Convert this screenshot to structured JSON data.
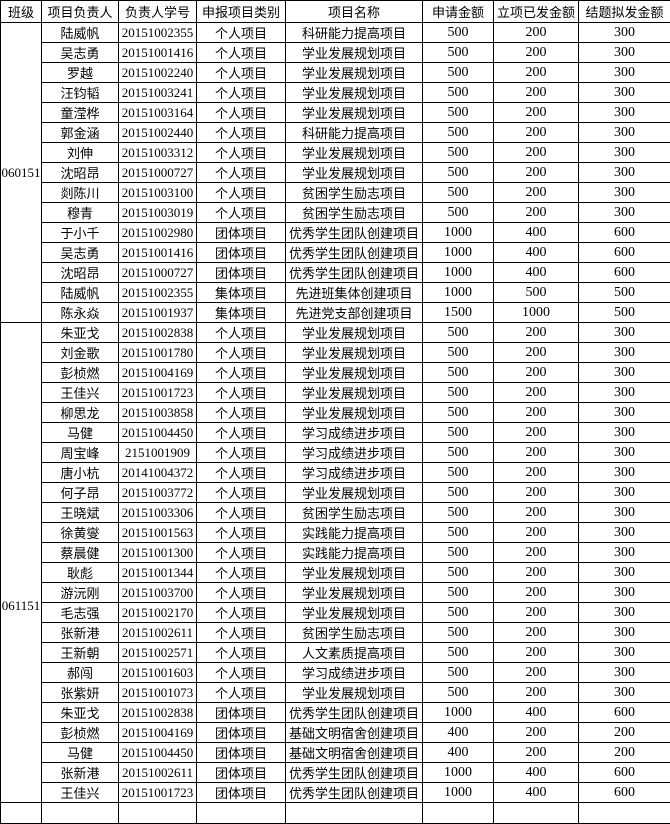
{
  "table": {
    "columns": [
      "班级",
      "项目负责人",
      "负责人学号",
      "申报项目类别",
      "项目名称",
      "申请金额",
      "立项已发金额",
      "结题拟发金额"
    ],
    "groups": [
      {
        "class_label": "060151",
        "rows": [
          [
            "陆威帆",
            "20151002355",
            "个人项目",
            "科研能力提高项目",
            "500",
            "200",
            "300"
          ],
          [
            "吴志勇",
            "20151001416",
            "个人项目",
            "学业发展规划项目",
            "500",
            "200",
            "300"
          ],
          [
            "罗越",
            "20151002240",
            "个人项目",
            "学业发展规划项目",
            "500",
            "200",
            "300"
          ],
          [
            "汪钧韬",
            "20151003241",
            "个人项目",
            "学业发展规划项目",
            "500",
            "200",
            "300"
          ],
          [
            "童滢桦",
            "20151003164",
            "个人项目",
            "学业发展规划项目",
            "500",
            "200",
            "300"
          ],
          [
            "郭金涵",
            "20151002440",
            "个人项目",
            "科研能力提高项目",
            "500",
            "200",
            "300"
          ],
          [
            "刘伸",
            "20151003312",
            "个人项目",
            "学业发展规划项目",
            "500",
            "200",
            "300"
          ],
          [
            "沈昭昂",
            "20151000727",
            "个人项目",
            "学业发展规划项目",
            "500",
            "200",
            "300"
          ],
          [
            "剡陈川",
            "20151003100",
            "个人项目",
            "贫困学生励志项目",
            "500",
            "200",
            "300"
          ],
          [
            "穆青",
            "20151003019",
            "个人项目",
            "贫困学生励志项目",
            "500",
            "200",
            "300"
          ],
          [
            "于小千",
            "20151002980",
            "团体项目",
            "优秀学生团队创建项目",
            "1000",
            "400",
            "600"
          ],
          [
            "吴志勇",
            "20151001416",
            "团体项目",
            "优秀学生团队创建项目",
            "1000",
            "400",
            "600"
          ],
          [
            "沈昭昂",
            "20151000727",
            "团体项目",
            "优秀学生团队创建项目",
            "1000",
            "400",
            "600"
          ],
          [
            "陆威帆",
            "20151002355",
            "集体项目",
            "先进班集体创建项目",
            "1000",
            "500",
            "500"
          ],
          [
            "陈永焱",
            "20151001937",
            "集体项目",
            "先进党支部创建项目",
            "1500",
            "1000",
            "500"
          ]
        ]
      },
      {
        "class_label": "061151",
        "rows": [
          [
            "朱亚戈",
            "20151002838",
            "个人项目",
            "学业发展规划项目",
            "500",
            "200",
            "300"
          ],
          [
            "刘金歌",
            "20151001780",
            "个人项目",
            "学业发展规划项目",
            "500",
            "200",
            "300"
          ],
          [
            "彭桢燃",
            "20151004169",
            "个人项目",
            "学业发展规划项目",
            "500",
            "200",
            "300"
          ],
          [
            "王佳兴",
            "20151001723",
            "个人项目",
            "学业发展规划项目",
            "500",
            "200",
            "300"
          ],
          [
            "柳思龙",
            "20151003858",
            "个人项目",
            "学业发展规划项目",
            "500",
            "200",
            "300"
          ],
          [
            "马健",
            "20151004450",
            "个人项目",
            "学习成绩进步项目",
            "500",
            "200",
            "300"
          ],
          [
            "周宝峰",
            "2151001909",
            "个人项目",
            "学习成绩进步项目",
            "500",
            "200",
            "300"
          ],
          [
            "唐小杭",
            "20141004372",
            "个人项目",
            "学习成绩进步项目",
            "500",
            "200",
            "300"
          ],
          [
            "何子昂",
            "20151003772",
            "个人项目",
            "学业发展规划项目",
            "500",
            "200",
            "300"
          ],
          [
            "王晓斌",
            "20151003306",
            "个人项目",
            "贫困学生励志项目",
            "500",
            "200",
            "300"
          ],
          [
            "徐黄燮",
            "20151001563",
            "个人项目",
            "实践能力提高项目",
            "500",
            "200",
            "300"
          ],
          [
            "蔡晨健",
            "20151001300",
            "个人项目",
            "实践能力提高项目",
            "500",
            "200",
            "300"
          ],
          [
            "耿彪",
            "20151001344",
            "个人项目",
            "学业发展规划项目",
            "500",
            "200",
            "300"
          ],
          [
            "游沅刚",
            "20151003700",
            "个人项目",
            "学业发展规划项目",
            "500",
            "200",
            "300"
          ],
          [
            "毛志强",
            "20151002170",
            "个人项目",
            "学业发展规划项目",
            "500",
            "200",
            "300"
          ],
          [
            "张新港",
            "20151002611",
            "个人项目",
            "贫困学生励志项目",
            "500",
            "200",
            "300"
          ],
          [
            "王新朝",
            "20151002571",
            "个人项目",
            "人文素质提高项目",
            "500",
            "200",
            "300"
          ],
          [
            "郝闯",
            "20151001603",
            "个人项目",
            "学习成绩进步项目",
            "500",
            "200",
            "300"
          ],
          [
            "张紫妍",
            "20151001073",
            "个人项目",
            "学业发展规划项目",
            "500",
            "200",
            "300"
          ],
          [
            "朱亚戈",
            "20151002838",
            "团体项目",
            "优秀学生团队创建项目",
            "1000",
            "400",
            "600"
          ],
          [
            "彭桢燃",
            "20151004169",
            "团体项目",
            "基础文明宿舍创建项目",
            "400",
            "200",
            "200"
          ],
          [
            "马健",
            "20151004450",
            "团体项目",
            "基础文明宿舍创建项目",
            "400",
            "200",
            "200"
          ],
          [
            "张新港",
            "20151002611",
            "团体项目",
            "优秀学生团队创建项目",
            "1000",
            "400",
            "600"
          ],
          [
            "王佳兴",
            "20151001723",
            "团体项目",
            "优秀学生团队创建项目",
            "1000",
            "400",
            "600"
          ]
        ]
      }
    ]
  }
}
